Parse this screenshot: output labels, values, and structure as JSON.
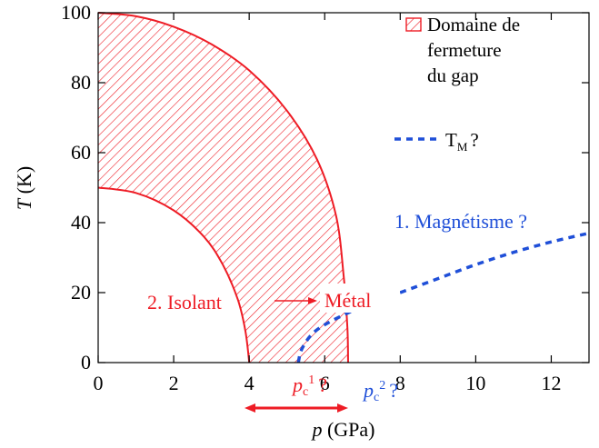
{
  "chart_data": {
    "type": "line",
    "xlabel": {
      "var": "p",
      "unit": " (GPa)"
    },
    "ylabel": {
      "var": "T",
      "unit": " (K)"
    },
    "xlim": [
      0,
      13
    ],
    "ylim": [
      0,
      100
    ],
    "xticks": [
      0,
      2,
      4,
      6,
      8,
      10,
      12
    ],
    "yticks": [
      0,
      20,
      40,
      60,
      80,
      100
    ],
    "grid": false,
    "legend_position": "top-right",
    "colors": {
      "gap": "#ee1c25",
      "magnetism": "#1f4fd8",
      "axis": "#000000"
    },
    "legend": [
      {
        "kind": "hatched-box",
        "lines": [
          "Domaine de",
          "fermeture",
          "du gap"
        ]
      },
      {
        "kind": "dashed-line",
        "main": "T",
        "sub": "M",
        "suffix": "?"
      }
    ],
    "series": [
      {
        "name": "Domaine de fermeture du gap (bord supérieur)",
        "style": "solid",
        "x": [
          0,
          1,
          2,
          3,
          4,
          5,
          5.8,
          6.3,
          6.5,
          6.6,
          6.62
        ],
        "y": [
          100,
          99,
          96,
          91,
          83.5,
          72,
          58,
          42,
          25,
          10,
          0
        ]
      },
      {
        "name": "Domaine de fermeture du gap (bord inférieur)",
        "style": "solid",
        "x": [
          0,
          1,
          2,
          2.8,
          3.3,
          3.7,
          3.9,
          4.0
        ],
        "y": [
          50,
          48.5,
          43.5,
          36,
          28,
          18,
          9,
          0
        ]
      },
      {
        "name": "TM",
        "style": "dashed",
        "x": [
          5.3,
          5.4,
          5.7,
          6.2,
          7,
          8,
          9,
          10,
          11,
          12,
          13
        ],
        "y": [
          0,
          4,
          8.5,
          12,
          16,
          20,
          24,
          28,
          31.5,
          34.5,
          37
        ]
      }
    ],
    "annotations": {
      "isolant": "2. Isolant",
      "metal": "Métal",
      "magnetisme": "1. Magnétisme ?",
      "pc1": {
        "var": "p",
        "sub": "c",
        "sup": "1",
        "suffix": "?"
      },
      "pc2": {
        "var": "p",
        "sub": "c",
        "sup": "2",
        "suffix": "?"
      }
    }
  }
}
